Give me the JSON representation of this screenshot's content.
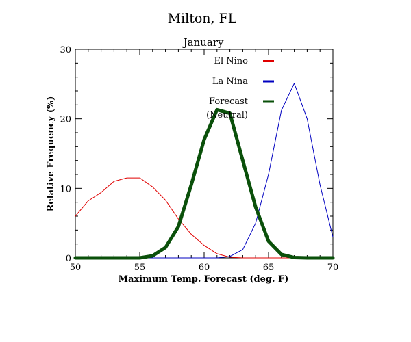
{
  "chart_data": {
    "type": "line",
    "title": "Milton, FL",
    "subtitle": "January",
    "xlabel": "Maximum Temp. Forecast (deg. F)",
    "ylabel": "Relative Frequency (%)",
    "xlim": [
      50,
      70
    ],
    "ylim": [
      0,
      30
    ],
    "x_ticks": [
      50,
      55,
      60,
      65,
      70
    ],
    "y_ticks": [
      0,
      10,
      20,
      30
    ],
    "x": [
      50,
      51,
      52,
      53,
      54,
      55,
      56,
      57,
      58,
      59,
      60,
      61,
      62,
      63,
      64,
      65,
      66,
      67,
      68,
      69,
      70
    ],
    "series": [
      {
        "name": "El Nino",
        "color": "#e00000",
        "values": [
          6.0,
          8.2,
          9.4,
          11.0,
          11.5,
          11.5,
          10.2,
          8.3,
          5.6,
          3.4,
          1.8,
          0.6,
          0.1,
          0,
          0,
          0,
          0,
          0,
          0,
          0,
          0
        ]
      },
      {
        "name": "La Nina",
        "color": "#0000c0",
        "values": [
          0,
          0,
          0,
          0,
          0,
          0,
          0,
          0,
          0,
          0,
          0,
          0,
          0.2,
          1.2,
          5.0,
          12.0,
          21.2,
          25.1,
          20.0,
          10.5,
          3.0
        ]
      },
      {
        "name": "Forecast\n(Neutral)",
        "color": "#0a500a",
        "values": [
          0,
          0,
          0,
          0,
          0,
          0,
          0.3,
          1.5,
          4.5,
          10.5,
          17.0,
          21.3,
          20.8,
          14.0,
          7.3,
          2.4,
          0.5,
          0.05,
          0,
          0,
          0
        ]
      }
    ],
    "legend_position": "top-center"
  }
}
